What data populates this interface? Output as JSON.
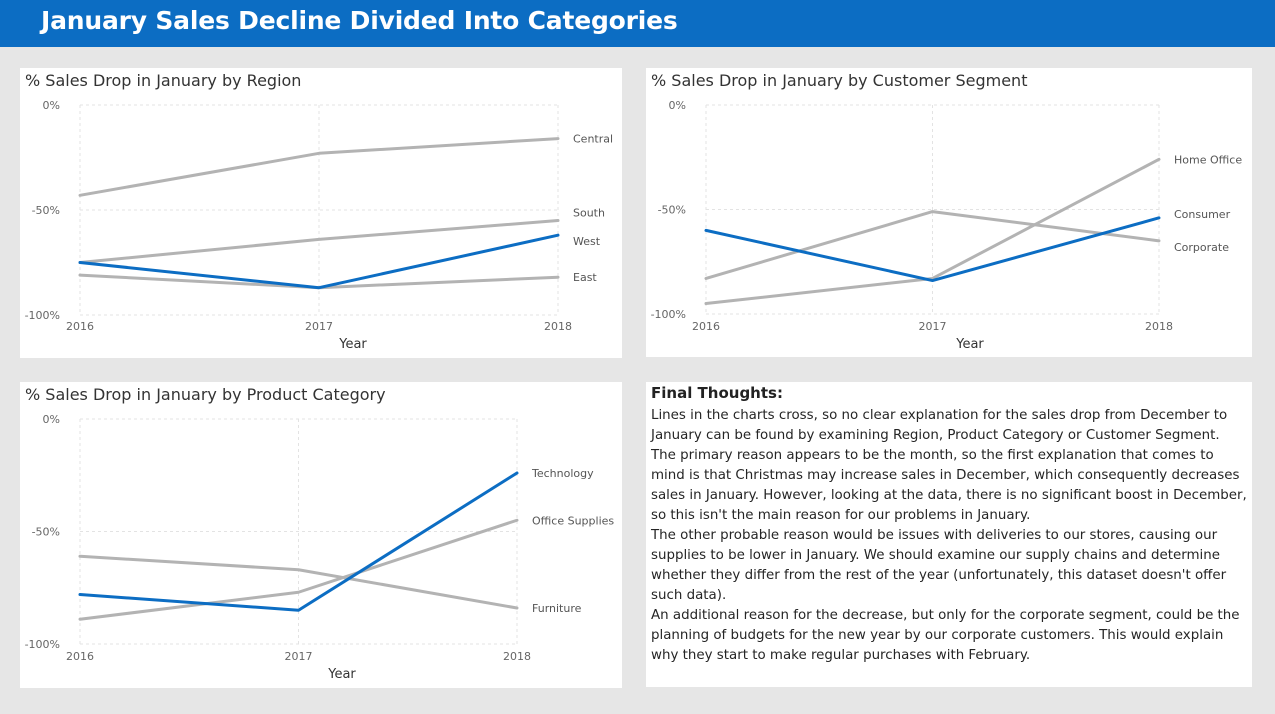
{
  "header": {
    "title": "January Sales Decline Divided Into Categories"
  },
  "colors": {
    "header_bg": "#0c6dc3",
    "highlight": "#0c6dc3",
    "muted": "#b3b3b3"
  },
  "chart_data": [
    {
      "type": "line",
      "title": "% Sales Drop in January by Region",
      "xlabel": "Year",
      "ylabel": "",
      "x": [
        "2016",
        "2017",
        "2018"
      ],
      "ylim": [
        -100,
        0
      ],
      "yticks": [
        0,
        -50,
        -100
      ],
      "ytick_labels": [
        "0%",
        "-50%",
        "-100%"
      ],
      "grid": true,
      "series": [
        {
          "name": "Central",
          "values": [
            -43,
            -23,
            -16
          ],
          "highlight": false
        },
        {
          "name": "South",
          "values": [
            -75,
            -64,
            -55
          ],
          "highlight": false
        },
        {
          "name": "West",
          "values": [
            -75,
            -87,
            -62
          ],
          "highlight": true
        },
        {
          "name": "East",
          "values": [
            -81,
            -87,
            -82
          ],
          "highlight": false
        }
      ]
    },
    {
      "type": "line",
      "title": "% Sales Drop in January by Customer Segment",
      "xlabel": "Year",
      "ylabel": "",
      "x": [
        "2016",
        "2017",
        "2018"
      ],
      "ylim": [
        -100,
        0
      ],
      "yticks": [
        0,
        -50,
        -100
      ],
      "ytick_labels": [
        "0%",
        "-50%",
        "-100%"
      ],
      "grid": true,
      "series": [
        {
          "name": "Home Office",
          "values": [
            -95,
            -83,
            -26
          ],
          "highlight": false
        },
        {
          "name": "Consumer",
          "values": [
            -60,
            -84,
            -54
          ],
          "highlight": true
        },
        {
          "name": "Corporate",
          "values": [
            -83,
            -51,
            -65
          ],
          "highlight": false
        }
      ]
    },
    {
      "type": "line",
      "title": "% Sales Drop in January by Product Category",
      "xlabel": "Year",
      "ylabel": "",
      "x": [
        "2016",
        "2017",
        "2018"
      ],
      "ylim": [
        -100,
        0
      ],
      "yticks": [
        0,
        -50,
        -100
      ],
      "ytick_labels": [
        "0%",
        "-50%",
        "-100%"
      ],
      "grid": true,
      "series": [
        {
          "name": "Technology",
          "values": [
            -78,
            -85,
            -24
          ],
          "highlight": true
        },
        {
          "name": "Office Supplies",
          "values": [
            -89,
            -77,
            -45
          ],
          "highlight": false
        },
        {
          "name": "Furniture",
          "values": [
            -61,
            -67,
            -84
          ],
          "highlight": false
        }
      ]
    }
  ],
  "final_thoughts": {
    "title": "Final Thoughts:",
    "paragraphs": [
      "Lines in the charts cross, so no clear explanation for the sales drop from December to January can be found by examining Region, Product Category or Customer Segment.",
      "The primary reason appears to be the month, so the first explanation that comes to mind is that Christmas may increase sales in December, which consequently decreases sales in January. However, looking at the data, there is no significant boost in December, so this isn't the main reason for our problems in January.",
      "The other probable reason would be issues with deliveries to our stores, causing our supplies to be lower in January. We should examine our supply chains and determine whether they differ from the rest of the year (unfortunately, this dataset doesn't offer such data).",
      "An additional reason for the decrease, but only for the corporate segment, could be the planning of budgets for the new year by our corporate customers. This would explain why they start to make regular purchases with February."
    ]
  }
}
